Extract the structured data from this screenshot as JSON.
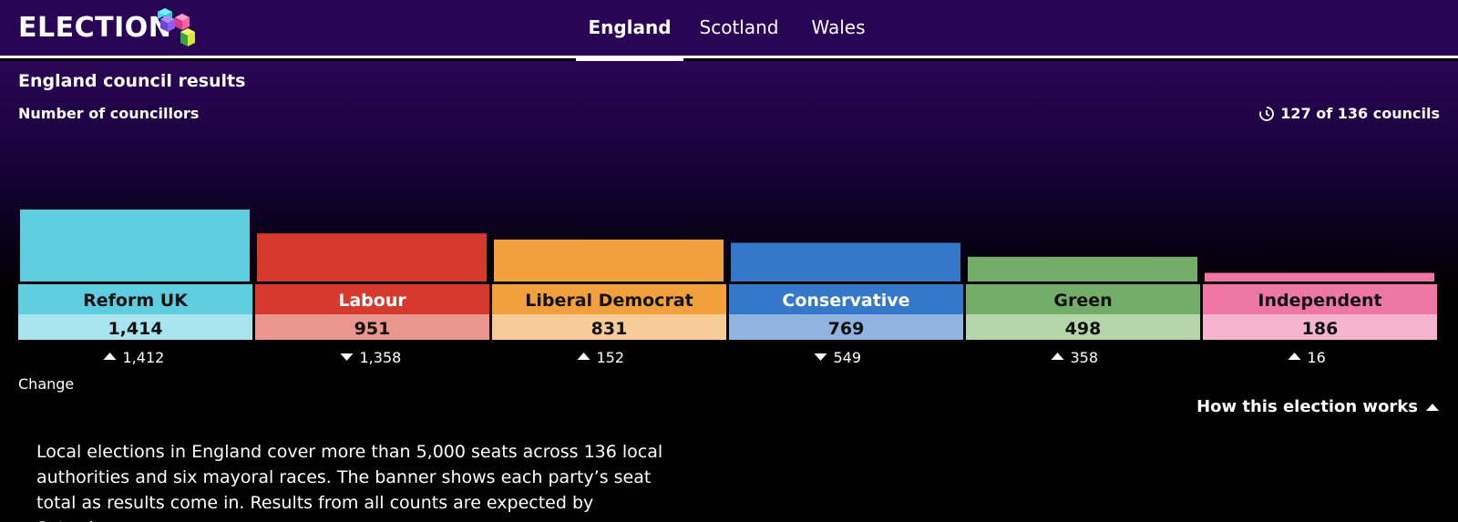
{
  "header": {
    "logo_text": "ELECTION",
    "tabs": [
      {
        "label": "England",
        "active": true
      },
      {
        "label": "Scotland",
        "active": false
      },
      {
        "label": "Wales",
        "active": false
      }
    ]
  },
  "panel": {
    "title": "England council results",
    "subtitle": "Number of councillors",
    "progress": "127 of 136 councils",
    "change_label": "Change",
    "how_works": "How this election works",
    "explainer": "Local elections in England cover more than 5,000 seats across 136 local authorities and six mayoral races. The banner shows each party’s seat total as results come in. Results from all counts are expected by Saturday."
  },
  "chart_data": {
    "type": "bar",
    "title": "England council results",
    "ylabel": "Number of councillors",
    "categories": [
      "Reform UK",
      "Labour",
      "Liberal Democrat",
      "Conservative",
      "Green",
      "Independent"
    ],
    "values": [
      1414,
      951,
      831,
      769,
      498,
      186
    ],
    "value_labels": [
      "1,414",
      "951",
      "831",
      "769",
      "498",
      "186"
    ],
    "changes": [
      {
        "direction": "up",
        "label": "1,412"
      },
      {
        "direction": "down",
        "label": "1,358"
      },
      {
        "direction": "up",
        "label": "152"
      },
      {
        "direction": "down",
        "label": "549"
      },
      {
        "direction": "up",
        "label": "358"
      },
      {
        "direction": "up",
        "label": "16"
      }
    ],
    "colors": [
      "#5ecde0",
      "#d63a2c",
      "#f1a13b",
      "#3577c9",
      "#74ad68",
      "#ee77a5"
    ],
    "light_colors": [
      "#a8e5ef",
      "#ea968e",
      "#f7cb97",
      "#90b3e0",
      "#b5d6ab",
      "#f6b4cf"
    ],
    "label_text_colors": [
      "#111111",
      "#ffffff",
      "#111111",
      "#ffffff",
      "#111111",
      "#111111"
    ]
  }
}
